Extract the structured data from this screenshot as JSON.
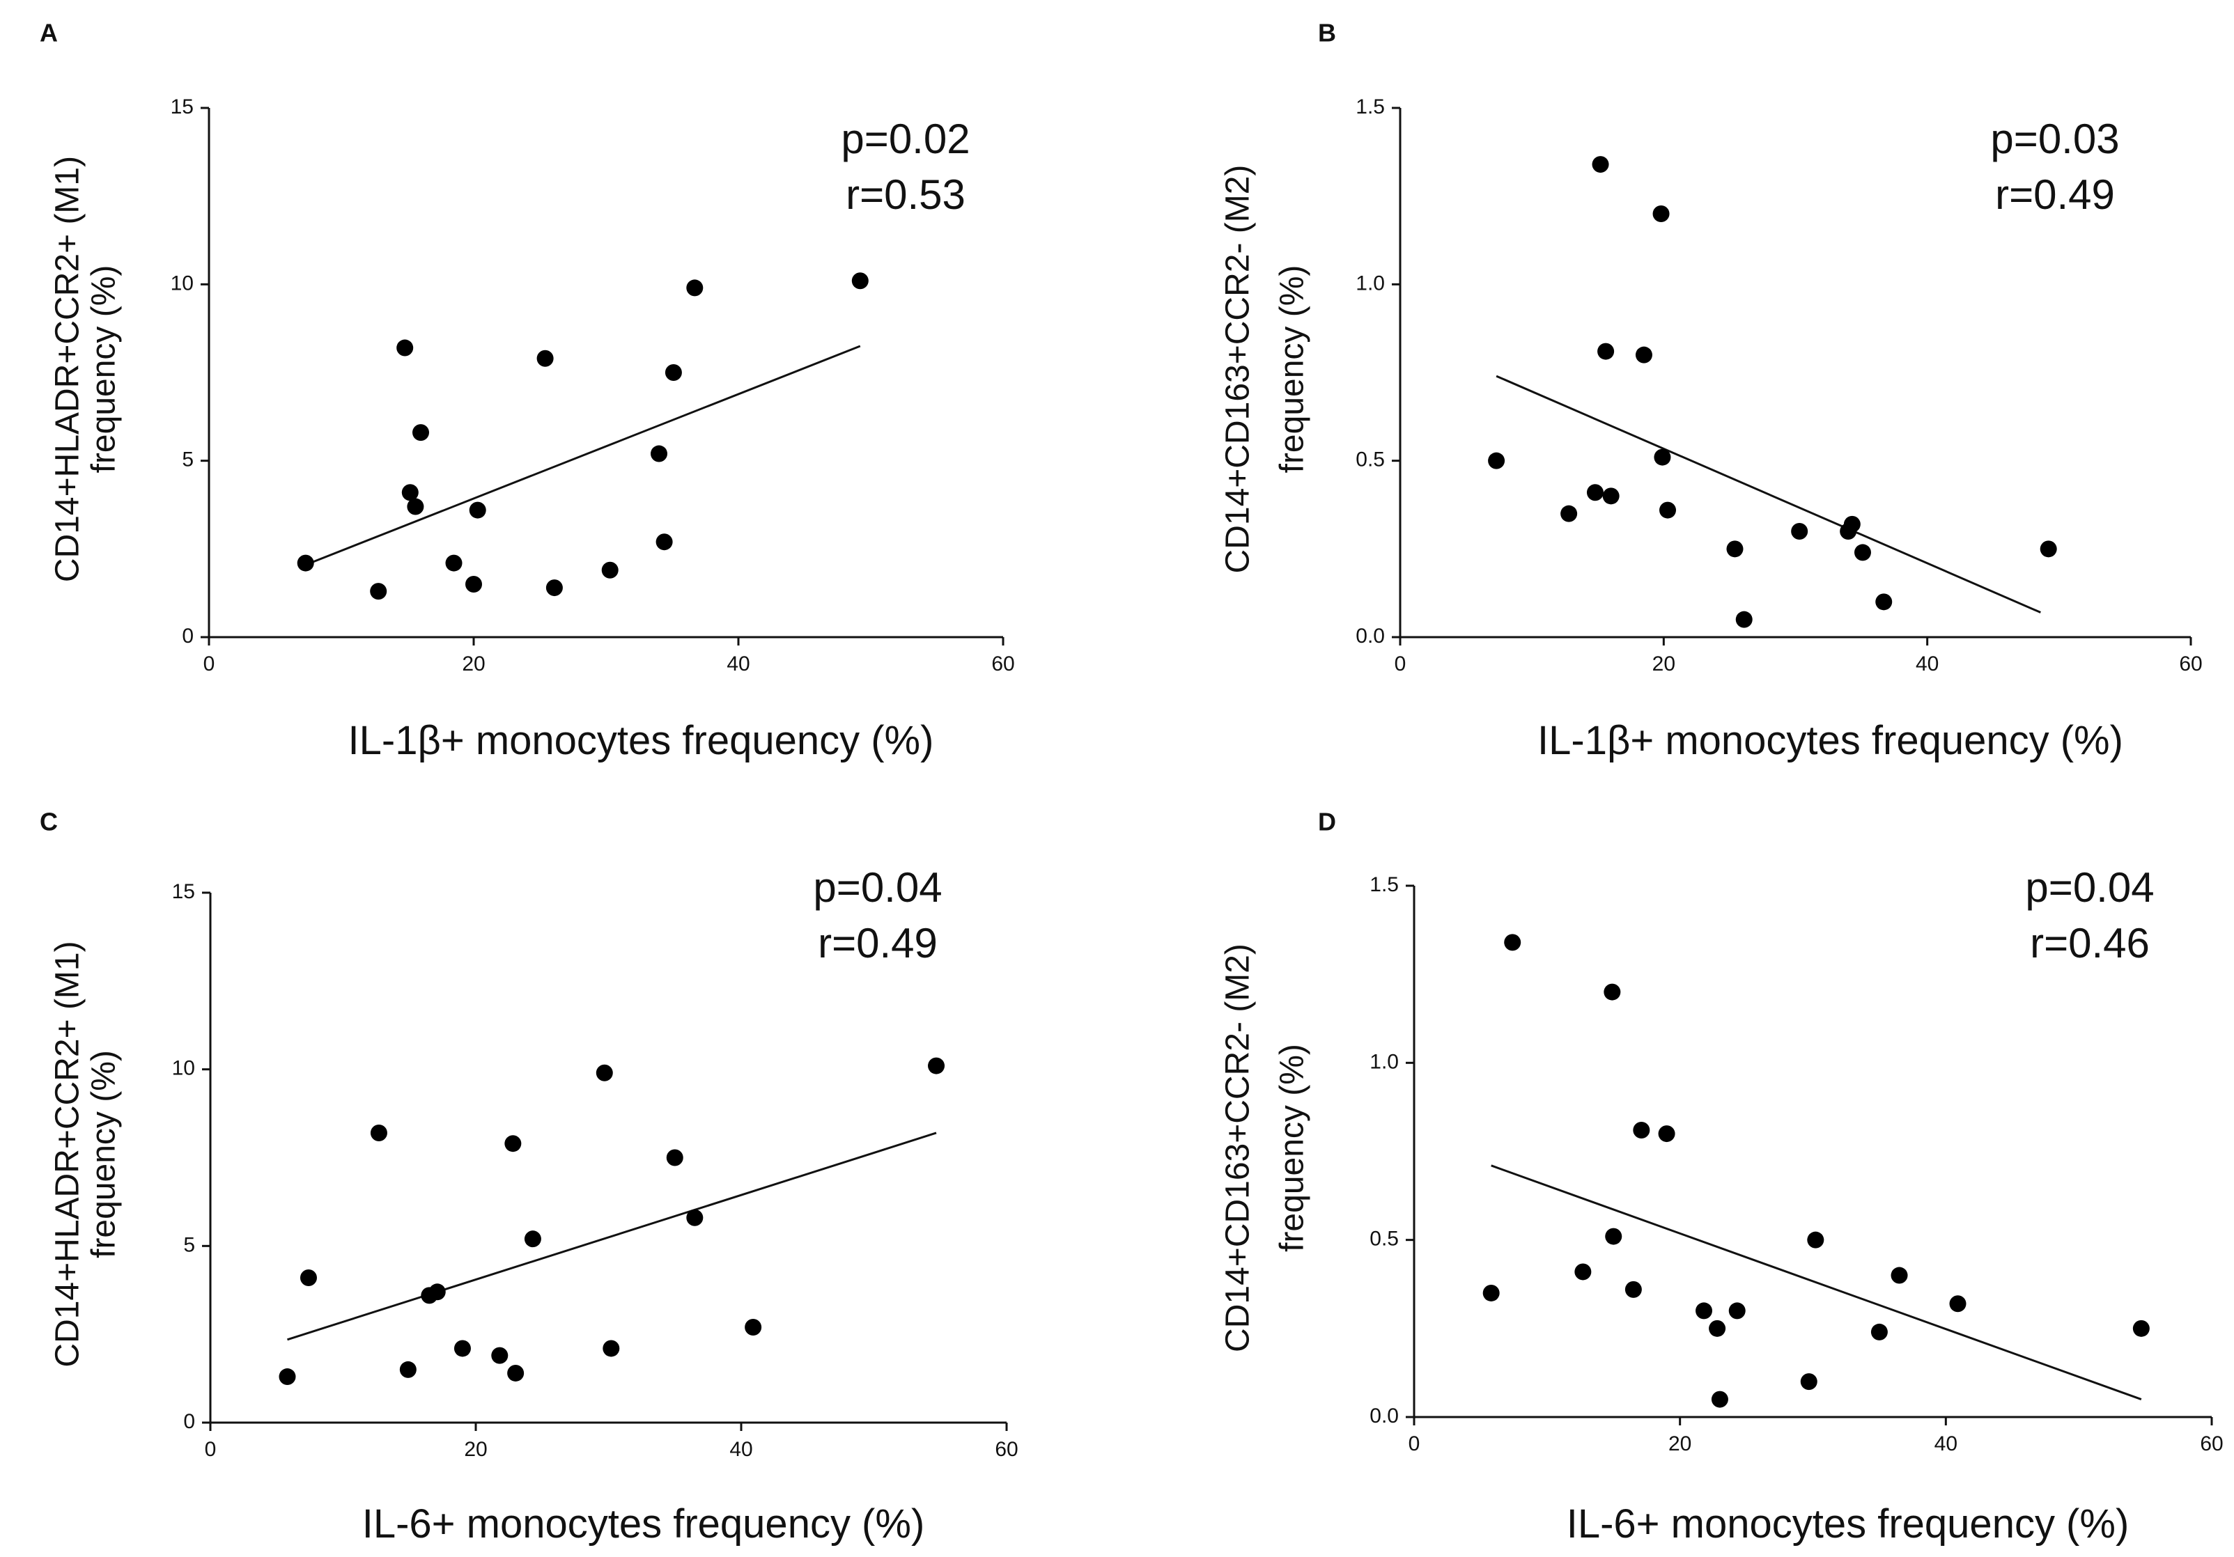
{
  "chart_data": [
    {
      "panel": "A",
      "type": "scatter",
      "xlabel": "IL-1β+ monocytes frequency  (%)",
      "ylabel_line1": "CD14+HLADR+CCR2+ (M1)",
      "ylabel_line2": "frequency  (%)",
      "xlim": [
        0,
        60
      ],
      "ylim": [
        0,
        15
      ],
      "xticks": [
        0,
        20,
        40,
        60
      ],
      "yticks": [
        0,
        5,
        10,
        15
      ],
      "xtick_labels": [
        "0",
        "20",
        "40",
        "60"
      ],
      "ytick_labels": [
        "0",
        "5",
        "10",
        "15"
      ],
      "stats": {
        "p": "p=0.02",
        "r": "r=0.53"
      },
      "points": [
        {
          "x": 7.3,
          "y": 2.1
        },
        {
          "x": 12.8,
          "y": 1.3
        },
        {
          "x": 14.8,
          "y": 8.2
        },
        {
          "x": 15.2,
          "y": 4.1
        },
        {
          "x": 15.6,
          "y": 3.7
        },
        {
          "x": 16.0,
          "y": 5.8
        },
        {
          "x": 18.5,
          "y": 2.1
        },
        {
          "x": 20.0,
          "y": 1.5
        },
        {
          "x": 20.3,
          "y": 3.6
        },
        {
          "x": 25.4,
          "y": 7.9
        },
        {
          "x": 26.1,
          "y": 1.4
        },
        {
          "x": 30.3,
          "y": 1.9
        },
        {
          "x": 34.0,
          "y": 5.2
        },
        {
          "x": 34.4,
          "y": 2.7
        },
        {
          "x": 35.1,
          "y": 7.5
        },
        {
          "x": 36.7,
          "y": 9.9
        },
        {
          "x": 49.2,
          "y": 10.1
        }
      ],
      "fit_line": {
        "x": [
          7.3,
          49.2
        ],
        "y": [
          2.05,
          8.25
        ]
      }
    },
    {
      "panel": "B",
      "type": "scatter",
      "xlabel": "IL-1β+ monocytes frequency  (%)",
      "ylabel_line1": "CD14+CD163+CCR2- (M2)",
      "ylabel_line2": "frequency  (%)",
      "xlim": [
        0,
        60
      ],
      "ylim": [
        0,
        1.5
      ],
      "xticks": [
        0,
        20,
        40,
        60
      ],
      "yticks": [
        0,
        0.5,
        1.0,
        1.5
      ],
      "xtick_labels": [
        "0",
        "20",
        "40",
        "60"
      ],
      "ytick_labels": [
        "0.0",
        "0.5",
        "1.0",
        "1.5"
      ],
      "stats": {
        "p": "p=0.03",
        "r": "r=0.49"
      },
      "points": [
        {
          "x": 7.3,
          "y": 0.5
        },
        {
          "x": 12.8,
          "y": 0.35
        },
        {
          "x": 14.8,
          "y": 0.41
        },
        {
          "x": 15.2,
          "y": 1.34
        },
        {
          "x": 15.6,
          "y": 0.81
        },
        {
          "x": 16.0,
          "y": 0.4
        },
        {
          "x": 18.5,
          "y": 0.8
        },
        {
          "x": 19.8,
          "y": 1.2
        },
        {
          "x": 19.9,
          "y": 0.51
        },
        {
          "x": 20.3,
          "y": 0.36
        },
        {
          "x": 25.4,
          "y": 0.25
        },
        {
          "x": 26.1,
          "y": 0.05
        },
        {
          "x": 30.3,
          "y": 0.3
        },
        {
          "x": 34.0,
          "y": 0.3
        },
        {
          "x": 34.3,
          "y": 0.32
        },
        {
          "x": 35.1,
          "y": 0.24
        },
        {
          "x": 36.7,
          "y": 0.1
        },
        {
          "x": 49.2,
          "y": 0.25
        }
      ],
      "fit_line": {
        "x": [
          7.3,
          48.6
        ],
        "y": [
          0.74,
          0.07
        ]
      }
    },
    {
      "panel": "C",
      "type": "scatter",
      "xlabel": "IL-6+ monocytes frequency  (%)",
      "ylabel_line1": "CD14+HLADR+CCR2+ (M1)",
      "ylabel_line2": "frequency  (%)",
      "xlim": [
        0,
        60
      ],
      "ylim": [
        0,
        15
      ],
      "xticks": [
        0,
        20,
        40,
        60
      ],
      "yticks": [
        0,
        5,
        10,
        15
      ],
      "xtick_labels": [
        "0",
        "20",
        "40",
        "60"
      ],
      "ytick_labels": [
        "0",
        "5",
        "10",
        "15"
      ],
      "stats": {
        "p": "p=0.04",
        "r": "r=0.49"
      },
      "points": [
        {
          "x": 5.8,
          "y": 1.3
        },
        {
          "x": 7.4,
          "y": 4.1
        },
        {
          "x": 12.7,
          "y": 8.2
        },
        {
          "x": 14.9,
          "y": 1.5
        },
        {
          "x": 16.5,
          "y": 3.6
        },
        {
          "x": 17.1,
          "y": 3.7
        },
        {
          "x": 19.0,
          "y": 2.1
        },
        {
          "x": 21.8,
          "y": 1.9
        },
        {
          "x": 22.8,
          "y": 7.9
        },
        {
          "x": 23.0,
          "y": 1.4
        },
        {
          "x": 24.3,
          "y": 5.2
        },
        {
          "x": 29.7,
          "y": 9.9
        },
        {
          "x": 30.2,
          "y": 2.1
        },
        {
          "x": 35.0,
          "y": 7.5
        },
        {
          "x": 36.5,
          "y": 5.8
        },
        {
          "x": 40.9,
          "y": 2.7
        },
        {
          "x": 54.7,
          "y": 10.1
        }
      ],
      "fit_line": {
        "x": [
          5.8,
          54.7
        ],
        "y": [
          2.35,
          8.2
        ]
      }
    },
    {
      "panel": "D",
      "type": "scatter",
      "xlabel": "IL-6+ monocytes frequency  (%)",
      "ylabel_line1": "CD14+CD163+CCR2- (M2)",
      "ylabel_line2": "frequency  (%)",
      "xlim": [
        0,
        60
      ],
      "ylim": [
        0,
        1.5
      ],
      "xticks": [
        0,
        20,
        40,
        60
      ],
      "yticks": [
        0,
        0.5,
        1.0,
        1.5
      ],
      "xtick_labels": [
        "0",
        "20",
        "40",
        "60"
      ],
      "ytick_labels": [
        "0.0",
        "0.5",
        "1.0",
        "1.5"
      ],
      "stats": {
        "p": "p=0.04",
        "r": "r=0.46"
      },
      "points": [
        {
          "x": 5.8,
          "y": 0.35
        },
        {
          "x": 7.4,
          "y": 1.34
        },
        {
          "x": 12.7,
          "y": 0.41
        },
        {
          "x": 14.9,
          "y": 1.2
        },
        {
          "x": 15.0,
          "y": 0.51
        },
        {
          "x": 16.5,
          "y": 0.36
        },
        {
          "x": 17.1,
          "y": 0.81
        },
        {
          "x": 19.0,
          "y": 0.8
        },
        {
          "x": 21.8,
          "y": 0.3
        },
        {
          "x": 22.8,
          "y": 0.25
        },
        {
          "x": 23.0,
          "y": 0.05
        },
        {
          "x": 24.3,
          "y": 0.3
        },
        {
          "x": 29.7,
          "y": 0.1
        },
        {
          "x": 30.2,
          "y": 0.5
        },
        {
          "x": 35.0,
          "y": 0.24
        },
        {
          "x": 36.5,
          "y": 0.4
        },
        {
          "x": 40.9,
          "y": 0.32
        },
        {
          "x": 54.7,
          "y": 0.25
        }
      ],
      "fit_line": {
        "x": [
          5.8,
          54.7
        ],
        "y": [
          0.71,
          0.05
        ]
      }
    }
  ]
}
